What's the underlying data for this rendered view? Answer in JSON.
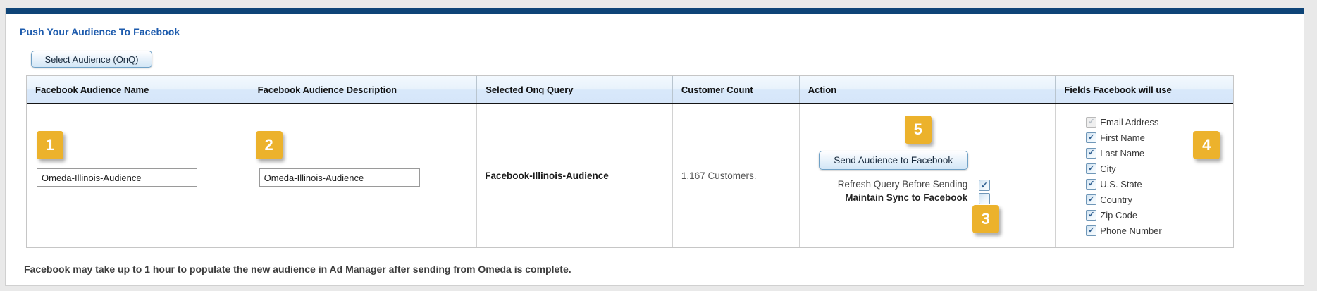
{
  "page": {
    "title": "Push Your Audience To Facebook",
    "select_audience_button": "Select Audience (OnQ)",
    "footer_note": "Facebook may take up to 1 hour to populate the new audience in Ad Manager after sending from Omeda is complete."
  },
  "colors": {
    "topbar_navy": "#0e4477",
    "heading_blue": "#1d5bad",
    "step_badge_amber": "#ecb22c",
    "header_band_blue": "#d6e6f9"
  },
  "badges": {
    "b1": "1",
    "b2": "2",
    "b3": "3",
    "b4": "4",
    "b5": "5"
  },
  "table": {
    "headers": [
      "Facebook Audience Name",
      "Facebook Audience Description",
      "Selected Onq Query",
      "Customer Count",
      "Action",
      "Fields Facebook will use"
    ],
    "row": {
      "audience_name_value": "Omeda-Illinois-Audience",
      "audience_description_value": "Omeda-Illinois-Audience",
      "selected_query": "Facebook-Illinois-Audience",
      "customer_count": "1,167 Customers.",
      "action": {
        "send_button_label": "Send Audience to Facebook",
        "refresh_label": "Refresh Query Before Sending",
        "refresh_checked": true,
        "maintain_label": "Maintain Sync to Facebook",
        "maintain_checked": false
      },
      "fields": [
        {
          "label": "Email Address",
          "checked": true,
          "disabled": true
        },
        {
          "label": "First Name",
          "checked": true,
          "disabled": false
        },
        {
          "label": "Last Name",
          "checked": true,
          "disabled": false
        },
        {
          "label": "City",
          "checked": true,
          "disabled": false
        },
        {
          "label": "U.S. State",
          "checked": true,
          "disabled": false
        },
        {
          "label": "Country",
          "checked": true,
          "disabled": false
        },
        {
          "label": "Zip Code",
          "checked": true,
          "disabled": false
        },
        {
          "label": "Phone Number",
          "checked": true,
          "disabled": false
        }
      ]
    }
  }
}
